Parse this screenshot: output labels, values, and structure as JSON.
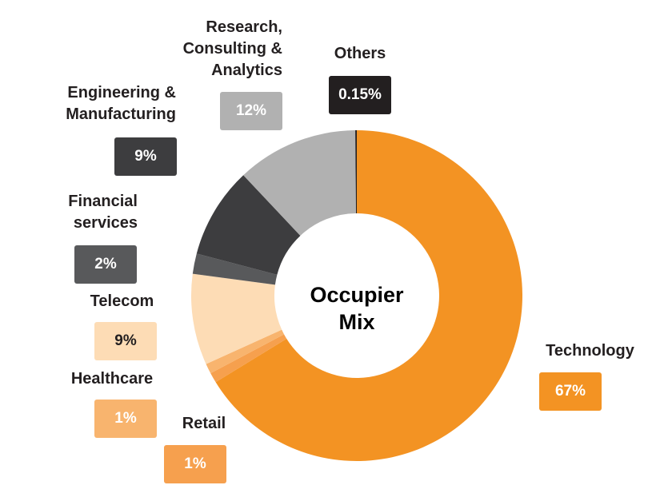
{
  "chart_data": {
    "type": "donut",
    "title": "Occupier Mix",
    "categories": [
      "Technology",
      "Retail",
      "Healthcare",
      "Telecom",
      "Financial services",
      "Engineering & Manufacturing",
      "Research, Consulting & Analytics",
      "Others"
    ],
    "values": [
      67,
      1,
      1,
      9,
      2,
      9,
      12,
      0.15
    ],
    "value_labels": [
      "67%",
      "1%",
      "1%",
      "9%",
      "2%",
      "9%",
      "12%",
      "0.15%"
    ],
    "colors": [
      "#f39323",
      "#f6a04e",
      "#f8b46e",
      "#fddcb5",
      "#58595b",
      "#3d3d3f",
      "#b1b1b1",
      "#231f20"
    ]
  }
}
